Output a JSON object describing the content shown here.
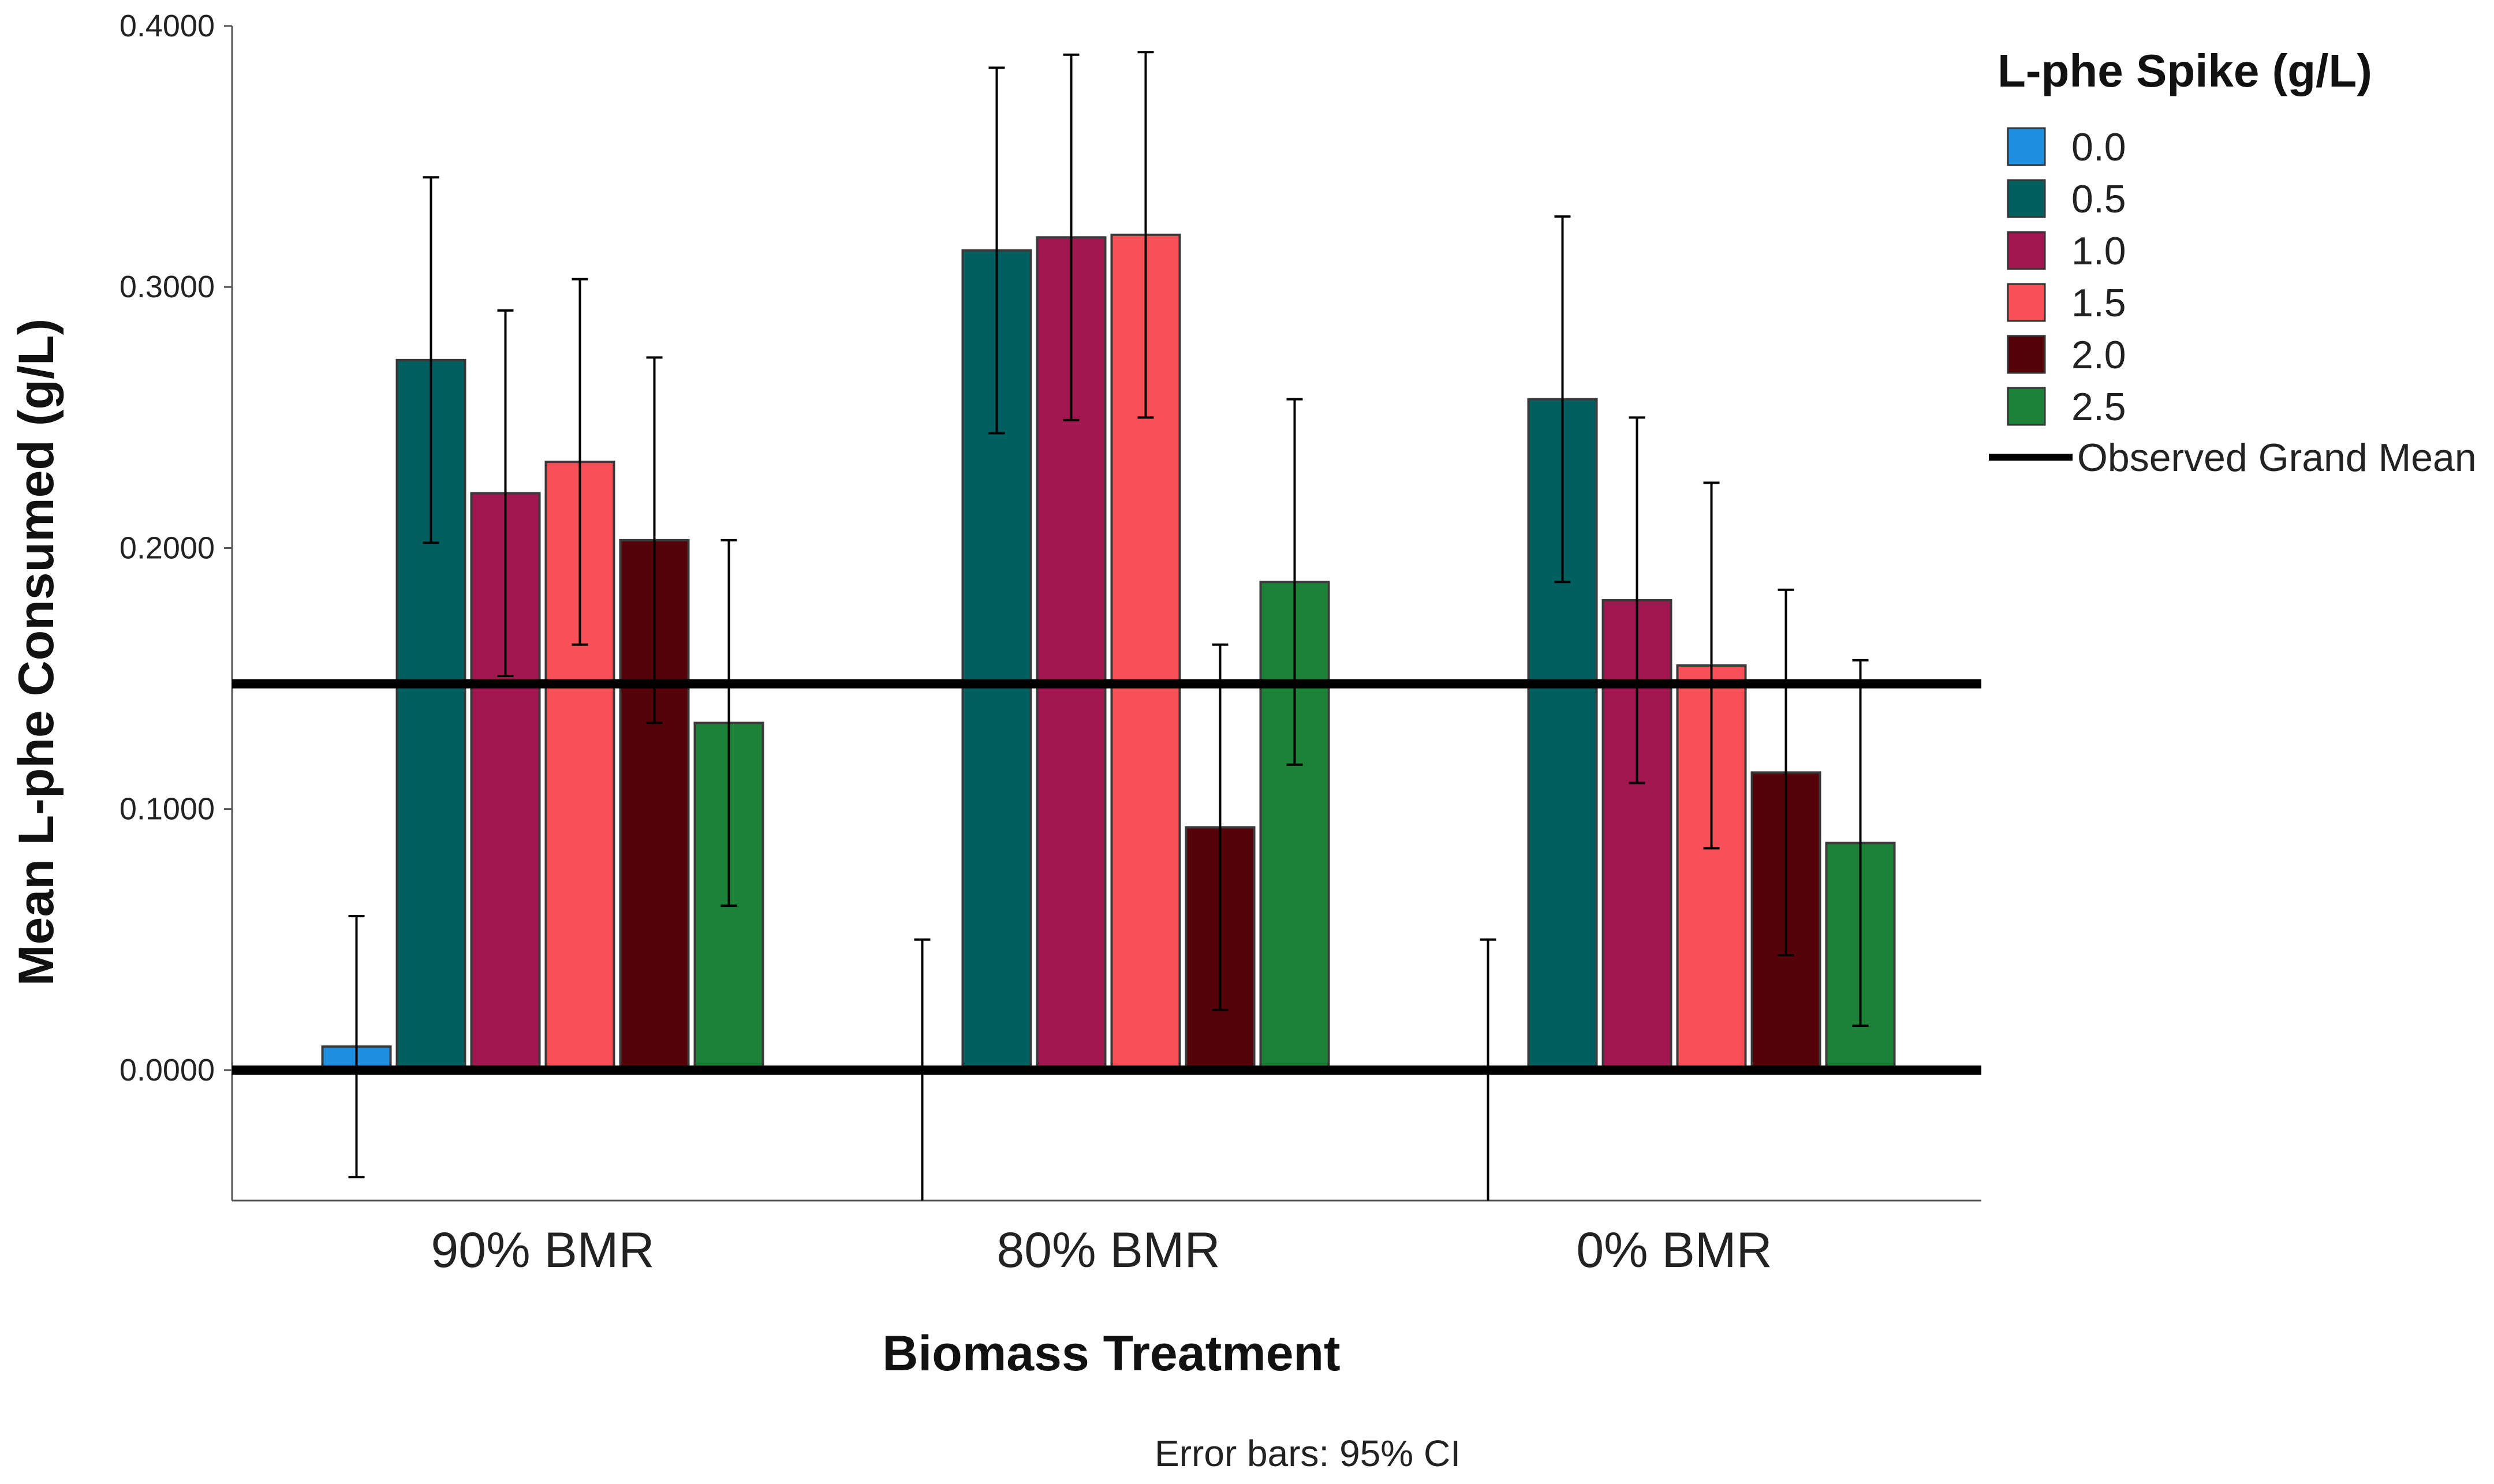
{
  "chart_data": {
    "type": "bar",
    "title": "",
    "xlabel": "Biomass Treatment",
    "ylabel": "Mean L-phe Consumed (g/L)",
    "ylim": [
      -0.05,
      0.4
    ],
    "yticks": [
      "0.0000",
      "0.1000",
      "0.2000",
      "0.3000",
      "0.4000"
    ],
    "ytick_values": [
      0,
      0.1,
      0.2,
      0.3,
      0.4
    ],
    "categories": [
      "90% BMR",
      "80% BMR",
      "0% BMR"
    ],
    "legend_title": "L-phe Spike (g/L)",
    "legend_position": "right",
    "series": [
      {
        "name": "0.0",
        "color": "#1f8fe0",
        "values": [
          0.009,
          null,
          null
        ],
        "ci_low": [
          -0.041,
          -0.05,
          -0.05
        ],
        "ci_high": [
          0.059,
          0.05,
          0.05
        ]
      },
      {
        "name": "0.5",
        "color": "#005f5f",
        "values": [
          0.272,
          0.314,
          0.257
        ],
        "ci_low": [
          0.202,
          0.244,
          0.187
        ],
        "ci_high": [
          0.342,
          0.384,
          0.327
        ]
      },
      {
        "name": "1.0",
        "color": "#a0184f",
        "values": [
          0.221,
          0.319,
          0.18
        ],
        "ci_low": [
          0.151,
          0.249,
          0.11
        ],
        "ci_high": [
          0.291,
          0.389,
          0.25
        ]
      },
      {
        "name": "1.5",
        "color": "#f95157",
        "values": [
          0.233,
          0.32,
          0.155
        ],
        "ci_low": [
          0.163,
          0.25,
          0.085
        ],
        "ci_high": [
          0.303,
          0.39,
          0.225
        ]
      },
      {
        "name": "2.0",
        "color": "#550309",
        "values": [
          0.203,
          0.093,
          0.114
        ],
        "ci_low": [
          0.133,
          0.023,
          0.044
        ],
        "ci_high": [
          0.273,
          0.163,
          0.184
        ]
      },
      {
        "name": "2.5",
        "color": "#1c8238",
        "values": [
          0.133,
          0.187,
          0.087
        ],
        "ci_low": [
          0.063,
          0.117,
          0.017
        ],
        "ci_high": [
          0.203,
          0.257,
          0.157
        ]
      }
    ],
    "grand_mean": 0.148,
    "grand_mean_label": "Observed Grand Mean",
    "note": "Error bars: 95% CI"
  }
}
